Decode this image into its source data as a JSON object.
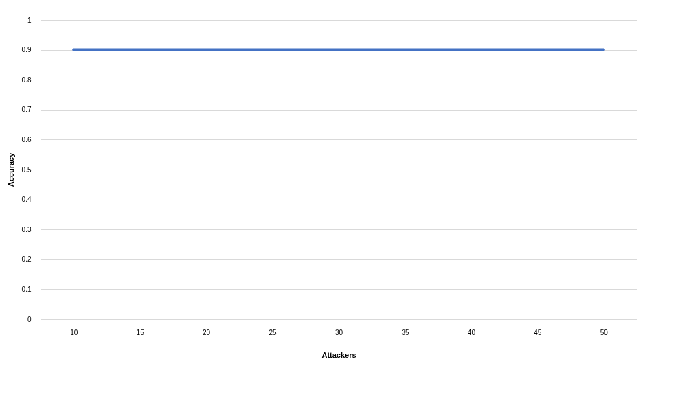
{
  "chart_data": {
    "type": "line",
    "xlabel": "Attackers",
    "ylabel": "Accuracy",
    "categories": [
      "10",
      "15",
      "20",
      "25",
      "30",
      "35",
      "40",
      "45",
      "50"
    ],
    "series": [
      {
        "color": "#4472c4",
        "values": [
          0.9,
          0.9,
          0.9,
          0.9,
          0.9,
          0.9,
          0.9,
          0.9,
          0.9
        ]
      }
    ],
    "ylim": [
      0,
      1
    ],
    "yticks": [
      0,
      0.1,
      0.2,
      0.3,
      0.4,
      0.5,
      0.6,
      0.7,
      0.8,
      0.9,
      1
    ],
    "grid": "y",
    "legend": false,
    "marker": "none",
    "line_style": "solid"
  }
}
